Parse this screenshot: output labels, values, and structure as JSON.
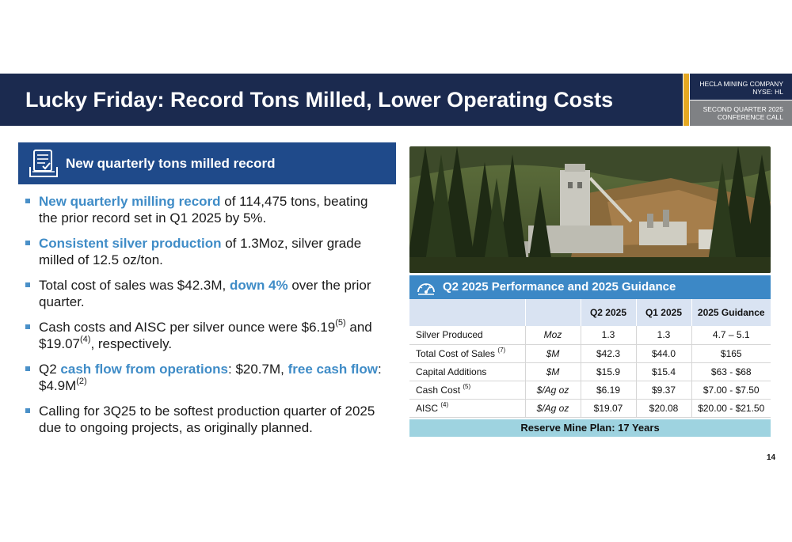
{
  "header": {
    "title": "Lucky Friday: Record Tons Milled, Lower Operating Costs",
    "company_line1": "HECLA MINING COMPANY",
    "company_line2": "NYSE: HL",
    "call_line1": "SECOND QUARTER 2025",
    "call_line2": "CONFERENCE CALL"
  },
  "left_banner": {
    "icon": "checklist-icon",
    "title": "New quarterly tons milled record"
  },
  "bullets": {
    "b1": {
      "hl": "New quarterly milling record",
      "rest": " of 114,475 tons, beating the prior record set in Q1 2025 by 5%."
    },
    "b2": {
      "hl": "Consistent silver production",
      "rest": " of 1.3Moz, silver grade milled of 12.5 oz/ton."
    },
    "b3": {
      "pre": "Total cost of sales was $42.3M, ",
      "hl": "down 4%",
      "post": " over the prior quarter."
    },
    "b4": {
      "pre": "Cash costs and AISC per silver ounce were $6.19",
      "sup1": "(5)",
      "mid": " and $19.07",
      "sup2": "(4)",
      "post": ", respectively."
    },
    "b5": {
      "pre": "Q2 ",
      "hl1": "cash flow from operations",
      "mid": ": $20.7M, ",
      "hl2": "free cash flow",
      "post": ": $4.9M",
      "sup": "(2)"
    },
    "b6": {
      "text": "Calling for 3Q25 to be softest production quarter of 2025 due to ongoing projects, as originally planned."
    }
  },
  "table_banner": {
    "icon": "gauge-icon",
    "title": "Q2 2025 Performance and 2025 Guidance"
  },
  "table": {
    "headers": [
      "",
      "",
      "Q2 2025",
      "Q1 2025",
      "2025 Guidance"
    ],
    "rows": [
      {
        "label": "Silver Produced",
        "note": "",
        "unit": "Moz",
        "q2": "1.3",
        "q1": "1.3",
        "guidance": "4.7 – 5.1"
      },
      {
        "label": "Total Cost of Sales",
        "note": "(7)",
        "unit": "$M",
        "q2": "$42.3",
        "q1": "$44.0",
        "guidance": "$165"
      },
      {
        "label": "Capital Additions",
        "note": "",
        "unit": "$M",
        "q2": "$15.9",
        "q1": "$15.4",
        "guidance": "$63 - $68"
      },
      {
        "label": "Cash Cost",
        "note": "(5)",
        "unit": "$/Ag oz",
        "q2": "$6.19",
        "q1": "$9.37",
        "guidance": "$7.00 - $7.50"
      },
      {
        "label": "AISC",
        "note": "(4)",
        "unit": "$/Ag oz",
        "q2": "$19.07",
        "q1": "$20.08",
        "guidance": "$20.00 - $21.50"
      }
    ],
    "footer": "Reserve Mine Plan: 17 Years"
  },
  "page_number": "14",
  "colors": {
    "navy": "#1b2a4f",
    "gold": "#e5a822",
    "banner_blue": "#1f4a8a",
    "accent_blue": "#3c88c6",
    "highlight_text": "#3f8cc7",
    "reserve_bg": "#9ed3e0"
  }
}
